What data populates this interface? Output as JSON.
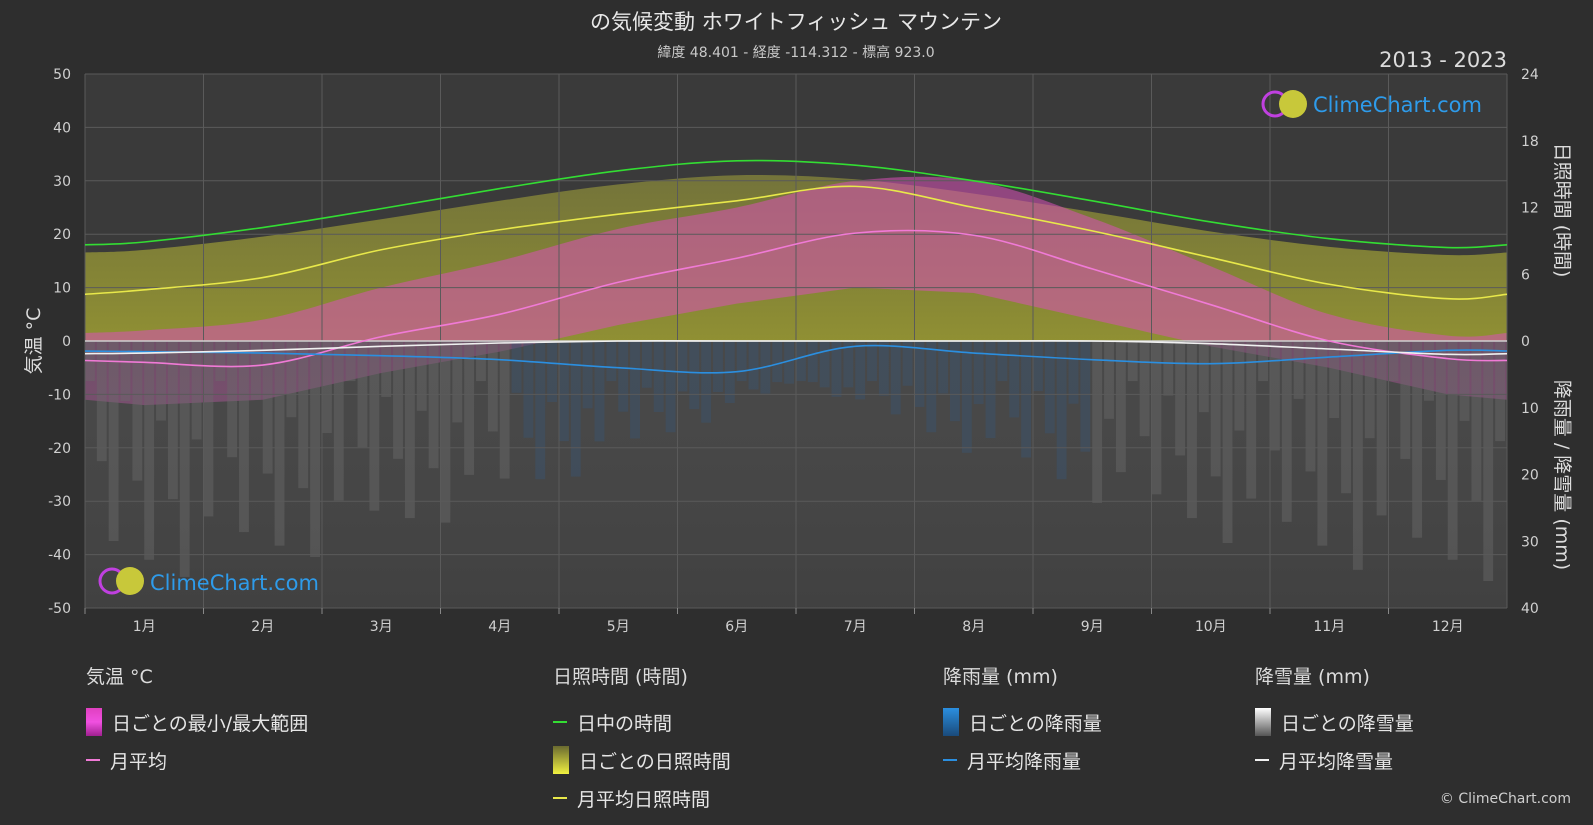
{
  "title": "の気候変動 ホワイトフィッシュ マウンテン",
  "subtitle": "緯度 48.401 - 経度 -114.312 - 標高 923.0",
  "period": "2013 - 2023",
  "watermark": "ClimeChart.com",
  "copyright": "© ClimeChart.com",
  "chart_data": {
    "type": "line",
    "categories": [
      "1月",
      "2月",
      "3月",
      "4月",
      "5月",
      "6月",
      "7月",
      "8月",
      "9月",
      "10月",
      "11月",
      "12月"
    ],
    "y_left": {
      "label": "気温 °C",
      "ylim": [
        -50,
        50
      ],
      "ticks": [
        50,
        40,
        30,
        20,
        10,
        0,
        -10,
        -20,
        -30,
        -40,
        -50
      ]
    },
    "y_right_top": {
      "label": "日照時間 (時間)",
      "ylim": [
        0,
        24
      ],
      "ticks": [
        24,
        18,
        12,
        6,
        0
      ]
    },
    "y_right_bottom": {
      "label": "降雨量 / 降雪量 (mm)",
      "ylim": [
        0,
        40
      ],
      "ticks": [
        0,
        10,
        20,
        30,
        40
      ]
    },
    "grid": true,
    "series": [
      {
        "name": "日中の時間",
        "axis": "sunshine",
        "color": "#33dd33",
        "values": [
          8.9,
          10.2,
          11.9,
          13.7,
          15.3,
          16.2,
          15.8,
          14.4,
          12.6,
          10.7,
          9.2,
          8.4
        ]
      },
      {
        "name": "月平均日照時間",
        "axis": "sunshine",
        "color": "#e8e84a",
        "values": [
          4.6,
          5.7,
          8.2,
          10.0,
          11.4,
          12.6,
          13.9,
          12.0,
          9.9,
          7.5,
          5.1,
          3.8
        ]
      },
      {
        "name": "月平均",
        "axis": "temp",
        "color": "#f07ad6",
        "values": [
          -4.0,
          -4.5,
          0.8,
          5.0,
          11.0,
          15.5,
          20.2,
          19.8,
          13.5,
          6.8,
          0.0,
          -3.3
        ]
      },
      {
        "name": "月平均降雨量",
        "axis": "precip",
        "color": "#2b8fe0",
        "values": [
          1.6,
          1.8,
          2.2,
          2.8,
          4.0,
          4.6,
          0.8,
          1.8,
          2.8,
          3.4,
          2.4,
          1.4
        ]
      },
      {
        "name": "月平均降雪量",
        "axis": "precip",
        "color": "#f0f0f0",
        "values": [
          1.8,
          1.4,
          0.8,
          0.3,
          0.0,
          0.0,
          0.0,
          0.0,
          0.0,
          0.4,
          1.2,
          2.0
        ]
      }
    ],
    "bands": {
      "temp_range": {
        "name": "日ごとの最小/最大範囲",
        "min": [
          -12,
          -11,
          -6,
          -2,
          3,
          7,
          10,
          9,
          4,
          -1,
          -5,
          -10
        ],
        "max": [
          2,
          4,
          10,
          15,
          21,
          25,
          30,
          30,
          23,
          14,
          5,
          1
        ]
      },
      "daily_sunshine": {
        "name": "ごとの日照時間"
      }
    }
  },
  "legend": {
    "temperature": {
      "title": "気温 °C",
      "items": [
        "日ごとの最小/最大範囲",
        "月平均"
      ]
    },
    "sunshine": {
      "title": "日照時間 (時間)",
      "items": [
        "日中の時間",
        "日ごとの日照時間",
        "月平均日照時間"
      ]
    },
    "rain": {
      "title": "降雨量 (mm)",
      "items": [
        "日ごとの降雨量",
        "月平均降雨量"
      ]
    },
    "snow": {
      "title": "降雪量 (mm)",
      "items": [
        "日ごとの降雪量",
        "月平均降雪量"
      ]
    }
  },
  "colors": {
    "background": "#2e2e2e",
    "plot": "#3a3a3a",
    "daylight": "#33dd33",
    "sunshine": "#e8e84a",
    "temp_avg": "#f07ad6",
    "temp_range": "#e040c0",
    "rain": "#2b8fe0",
    "snow": "#f0f0f0",
    "logo_text": "#2e9bea"
  }
}
